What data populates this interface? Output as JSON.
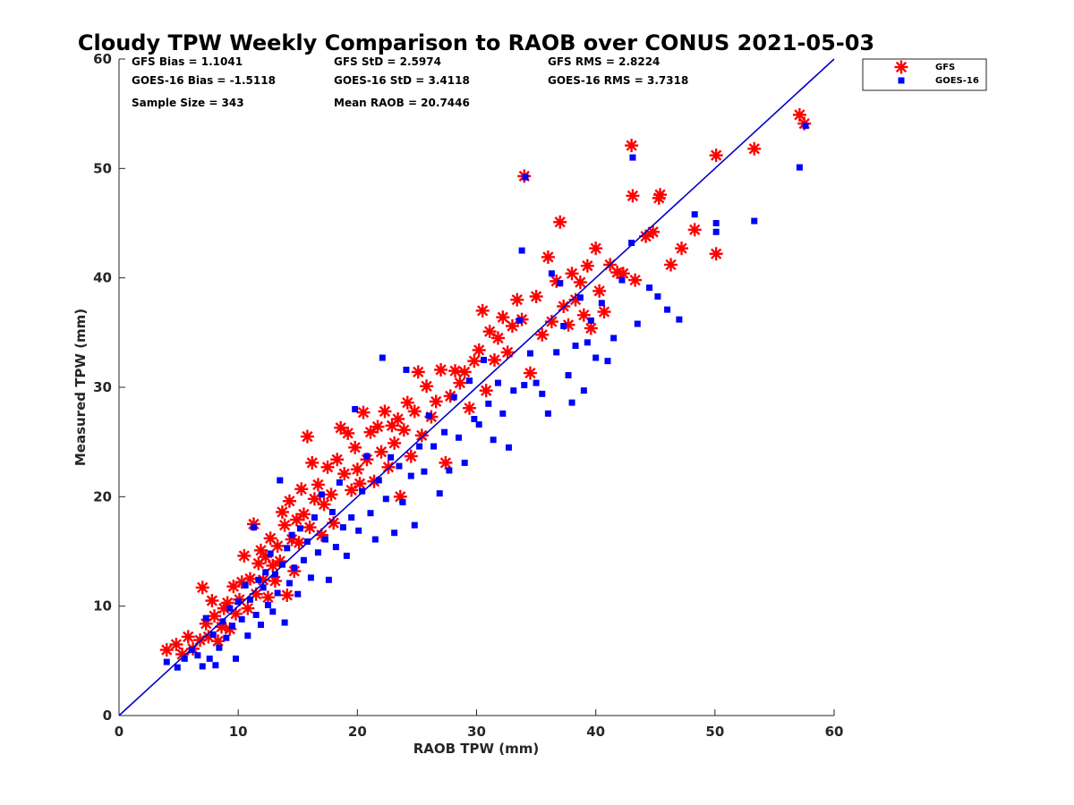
{
  "chart_data": {
    "type": "scatter",
    "title": "Cloudy TPW Weekly Comparison to RAOB over CONUS 2021-05-03",
    "xlabel": "RAOB TPW (mm)",
    "ylabel": "Measured TPW (mm)",
    "xlim": [
      0,
      60
    ],
    "ylim": [
      0,
      60
    ],
    "xticks": [
      "0",
      "10",
      "20",
      "30",
      "40",
      "50",
      "60"
    ],
    "yticks": [
      "0",
      "10",
      "20",
      "30",
      "40",
      "50",
      "60"
    ],
    "grid": false,
    "legend_position": "top-right outside",
    "stats": {
      "gfs_bias": "GFS Bias = 1.1041",
      "goes_bias": "GOES-16 Bias = -1.5118",
      "sample_size": "Sample Size = 343",
      "gfs_std": "GFS StD = 2.5974",
      "goes_std": "GOES-16 StD = 3.4118",
      "mean_raob": "Mean RAOB = 20.7446",
      "gfs_rms": "GFS RMS = 2.8224",
      "goes_rms": "GOES-16 RMS = 3.7318"
    },
    "reference_line": {
      "x": [
        0,
        60
      ],
      "y": [
        0,
        60
      ],
      "color": "#0000cc"
    },
    "series": [
      {
        "name": "GFS",
        "marker": "asterisk",
        "color": "#ff0000",
        "points": [
          [
            4,
            6
          ],
          [
            4.8,
            6.5
          ],
          [
            5.3,
            5.6
          ],
          [
            5.8,
            7.2
          ],
          [
            6.2,
            6.1
          ],
          [
            6.8,
            6.9
          ],
          [
            7,
            11.7
          ],
          [
            7.3,
            8.4
          ],
          [
            7.5,
            7.2
          ],
          [
            7.8,
            10.5
          ],
          [
            8,
            9.1
          ],
          [
            8.3,
            6.8
          ],
          [
            8.6,
            8.1
          ],
          [
            8.8,
            9.8
          ],
          [
            9.1,
            10.3
          ],
          [
            9.3,
            7.9
          ],
          [
            9.6,
            11.8
          ],
          [
            9.8,
            9.3
          ],
          [
            10.1,
            10.6
          ],
          [
            10.3,
            12.2
          ],
          [
            10.5,
            14.6
          ],
          [
            10.8,
            9.8
          ],
          [
            11,
            12.5
          ],
          [
            11.3,
            17.5
          ],
          [
            11.5,
            11.1
          ],
          [
            11.7,
            13.9
          ],
          [
            11.9,
            15.1
          ],
          [
            12.1,
            12.4
          ],
          [
            12.3,
            14.5
          ],
          [
            12.5,
            10.8
          ],
          [
            12.7,
            16.2
          ],
          [
            12.9,
            13.7
          ],
          [
            13.1,
            12.3
          ],
          [
            13.3,
            15.5
          ],
          [
            13.5,
            14.1
          ],
          [
            13.7,
            18.6
          ],
          [
            13.9,
            17.4
          ],
          [
            14.1,
            11
          ],
          [
            14.3,
            19.6
          ],
          [
            14.5,
            16.1
          ],
          [
            14.7,
            13.2
          ],
          [
            14.9,
            17.9
          ],
          [
            15.1,
            15.8
          ],
          [
            15.3,
            20.7
          ],
          [
            15.5,
            18.4
          ],
          [
            15.8,
            25.5
          ],
          [
            16,
            17.2
          ],
          [
            16.2,
            23.1
          ],
          [
            16.4,
            19.8
          ],
          [
            16.7,
            21.1
          ],
          [
            17,
            16.5
          ],
          [
            17.2,
            19.3
          ],
          [
            17.5,
            22.7
          ],
          [
            17.8,
            20.2
          ],
          [
            18,
            17.6
          ],
          [
            18.3,
            23.4
          ],
          [
            18.6,
            26.3
          ],
          [
            18.9,
            22.1
          ],
          [
            19.2,
            25.8
          ],
          [
            19.5,
            20.6
          ],
          [
            19.8,
            24.5
          ],
          [
            20,
            22.5
          ],
          [
            20.2,
            21.2
          ],
          [
            20.5,
            27.7
          ],
          [
            20.8,
            23.4
          ],
          [
            21.1,
            25.9
          ],
          [
            21.4,
            21.4
          ],
          [
            21.7,
            26.4
          ],
          [
            22,
            24.1
          ],
          [
            22.3,
            27.8
          ],
          [
            22.6,
            22.7
          ],
          [
            22.9,
            26.5
          ],
          [
            23.1,
            24.9
          ],
          [
            23.4,
            27.1
          ],
          [
            23.6,
            20
          ],
          [
            23.9,
            26.1
          ],
          [
            24.2,
            28.6
          ],
          [
            24.5,
            23.7
          ],
          [
            24.8,
            27.8
          ],
          [
            25.1,
            31.4
          ],
          [
            25.4,
            25.6
          ],
          [
            25.8,
            30.1
          ],
          [
            26.2,
            27.3
          ],
          [
            26.6,
            28.7
          ],
          [
            27,
            31.6
          ],
          [
            27.4,
            23.1
          ],
          [
            27.8,
            29.2
          ],
          [
            28.2,
            31.5
          ],
          [
            28.6,
            30.4
          ],
          [
            29,
            31.4
          ],
          [
            29.4,
            28.1
          ],
          [
            29.8,
            32.4
          ],
          [
            30.2,
            33.4
          ],
          [
            30.5,
            37
          ],
          [
            30.8,
            29.7
          ],
          [
            31.1,
            35.1
          ],
          [
            31.5,
            32.5
          ],
          [
            31.8,
            34.5
          ],
          [
            32.2,
            36.4
          ],
          [
            32.6,
            33.2
          ],
          [
            33,
            35.6
          ],
          [
            33.4,
            38
          ],
          [
            33.8,
            36.2
          ],
          [
            34,
            49.3
          ],
          [
            34.5,
            31.3
          ],
          [
            35,
            38.3
          ],
          [
            35.5,
            34.8
          ],
          [
            36,
            41.9
          ],
          [
            36.3,
            36
          ],
          [
            36.7,
            39.7
          ],
          [
            37,
            45.1
          ],
          [
            37.3,
            37.4
          ],
          [
            37.7,
            35.7
          ],
          [
            38,
            40.4
          ],
          [
            38.3,
            38
          ],
          [
            38.7,
            39.6
          ],
          [
            39,
            36.6
          ],
          [
            39.3,
            41.1
          ],
          [
            39.6,
            35.4
          ],
          [
            40,
            42.7
          ],
          [
            40.3,
            38.8
          ],
          [
            40.7,
            36.9
          ],
          [
            41.2,
            41.2
          ],
          [
            41.8,
            40.5
          ],
          [
            42.3,
            40.4
          ],
          [
            43,
            52.1
          ],
          [
            43.1,
            47.5
          ],
          [
            43.3,
            39.8
          ],
          [
            44.2,
            43.8
          ],
          [
            44.8,
            44.2
          ],
          [
            45.3,
            47.3
          ],
          [
            45.4,
            47.6
          ],
          [
            46.3,
            41.2
          ],
          [
            47.2,
            42.7
          ],
          [
            48.3,
            44.4
          ],
          [
            50.1,
            51.2
          ],
          [
            50.1,
            42.2
          ],
          [
            53.3,
            51.8
          ],
          [
            57.1,
            54.9
          ],
          [
            57.5,
            54.1
          ]
        ]
      },
      {
        "name": "GOES-16",
        "marker": "square",
        "color": "#0000ff",
        "points": [
          [
            4,
            4.9
          ],
          [
            4.9,
            4.4
          ],
          [
            5.5,
            5.2
          ],
          [
            6.1,
            6
          ],
          [
            6.6,
            5.5
          ],
          [
            7,
            4.5
          ],
          [
            7.3,
            8.9
          ],
          [
            7.6,
            5.2
          ],
          [
            7.9,
            7.4
          ],
          [
            8.1,
            4.6
          ],
          [
            8.4,
            6.2
          ],
          [
            8.7,
            8.6
          ],
          [
            9,
            7.1
          ],
          [
            9.3,
            9.8
          ],
          [
            9.5,
            8.2
          ],
          [
            9.8,
            5.2
          ],
          [
            10,
            10.4
          ],
          [
            10.3,
            8.8
          ],
          [
            10.6,
            11.9
          ],
          [
            10.8,
            7.3
          ],
          [
            11,
            10.6
          ],
          [
            11.3,
            17.2
          ],
          [
            11.5,
            9.2
          ],
          [
            11.7,
            12.4
          ],
          [
            11.9,
            8.3
          ],
          [
            12.1,
            11.7
          ],
          [
            12.3,
            13.1
          ],
          [
            12.5,
            10.1
          ],
          [
            12.7,
            14.8
          ],
          [
            12.9,
            9.5
          ],
          [
            13.1,
            12.9
          ],
          [
            13.3,
            11.2
          ],
          [
            13.5,
            21.5
          ],
          [
            13.7,
            13.8
          ],
          [
            13.9,
            8.5
          ],
          [
            14.1,
            15.3
          ],
          [
            14.3,
            12.1
          ],
          [
            14.5,
            16.5
          ],
          [
            14.7,
            13.5
          ],
          [
            15,
            11.1
          ],
          [
            15.2,
            17.1
          ],
          [
            15.5,
            14.2
          ],
          [
            15.8,
            15.9
          ],
          [
            16.1,
            12.6
          ],
          [
            16.4,
            18.1
          ],
          [
            16.7,
            14.9
          ],
          [
            17,
            20.2
          ],
          [
            17.3,
            16.1
          ],
          [
            17.6,
            12.4
          ],
          [
            17.9,
            18.6
          ],
          [
            18.2,
            15.4
          ],
          [
            18.5,
            21.3
          ],
          [
            18.8,
            17.2
          ],
          [
            19.1,
            14.6
          ],
          [
            19.5,
            18.1
          ],
          [
            19.8,
            28
          ],
          [
            20.1,
            16.9
          ],
          [
            20.4,
            20.5
          ],
          [
            20.8,
            23.7
          ],
          [
            21.1,
            18.5
          ],
          [
            21.5,
            16.1
          ],
          [
            21.8,
            21.5
          ],
          [
            22.1,
            32.7
          ],
          [
            22.4,
            19.8
          ],
          [
            22.8,
            23.6
          ],
          [
            23.1,
            16.7
          ],
          [
            23.5,
            22.8
          ],
          [
            23.8,
            19.5
          ],
          [
            24.1,
            31.6
          ],
          [
            24.5,
            21.9
          ],
          [
            24.8,
            17.4
          ],
          [
            25.2,
            24.6
          ],
          [
            25.6,
            22.3
          ],
          [
            26,
            27.4
          ],
          [
            26.4,
            24.6
          ],
          [
            26.9,
            20.3
          ],
          [
            27.3,
            25.9
          ],
          [
            27.7,
            22.4
          ],
          [
            28.1,
            29.1
          ],
          [
            28.5,
            25.4
          ],
          [
            29,
            23.1
          ],
          [
            29.4,
            30.6
          ],
          [
            29.8,
            27.1
          ],
          [
            30.2,
            26.6
          ],
          [
            30.6,
            32.5
          ],
          [
            31,
            28.5
          ],
          [
            31.4,
            25.2
          ],
          [
            31.8,
            30.4
          ],
          [
            32.2,
            27.6
          ],
          [
            32.7,
            24.5
          ],
          [
            33.1,
            29.7
          ],
          [
            33.6,
            36.1
          ],
          [
            33.8,
            42.5
          ],
          [
            34,
            30.2
          ],
          [
            34.1,
            49.2
          ],
          [
            34.5,
            33.1
          ],
          [
            35,
            30.4
          ],
          [
            35.5,
            29.4
          ],
          [
            36,
            27.6
          ],
          [
            36.3,
            40.4
          ],
          [
            36.7,
            33.2
          ],
          [
            37,
            39.5
          ],
          [
            37.3,
            35.6
          ],
          [
            37.7,
            31.1
          ],
          [
            38,
            28.6
          ],
          [
            38.3,
            33.8
          ],
          [
            38.7,
            38.2
          ],
          [
            39,
            29.7
          ],
          [
            39.3,
            34.1
          ],
          [
            39.6,
            36.1
          ],
          [
            40,
            32.7
          ],
          [
            40.5,
            37.7
          ],
          [
            41,
            32.4
          ],
          [
            41.5,
            34.5
          ],
          [
            42.2,
            39.8
          ],
          [
            43,
            43.2
          ],
          [
            43.1,
            51
          ],
          [
            43.5,
            35.8
          ],
          [
            44.5,
            39.1
          ],
          [
            45.2,
            38.3
          ],
          [
            46,
            37.1
          ],
          [
            47,
            36.2
          ],
          [
            48.3,
            45.8
          ],
          [
            50.1,
            45
          ],
          [
            50.1,
            44.2
          ],
          [
            53.3,
            45.2
          ],
          [
            57.1,
            50.1
          ],
          [
            57.6,
            53.9
          ]
        ]
      }
    ]
  }
}
